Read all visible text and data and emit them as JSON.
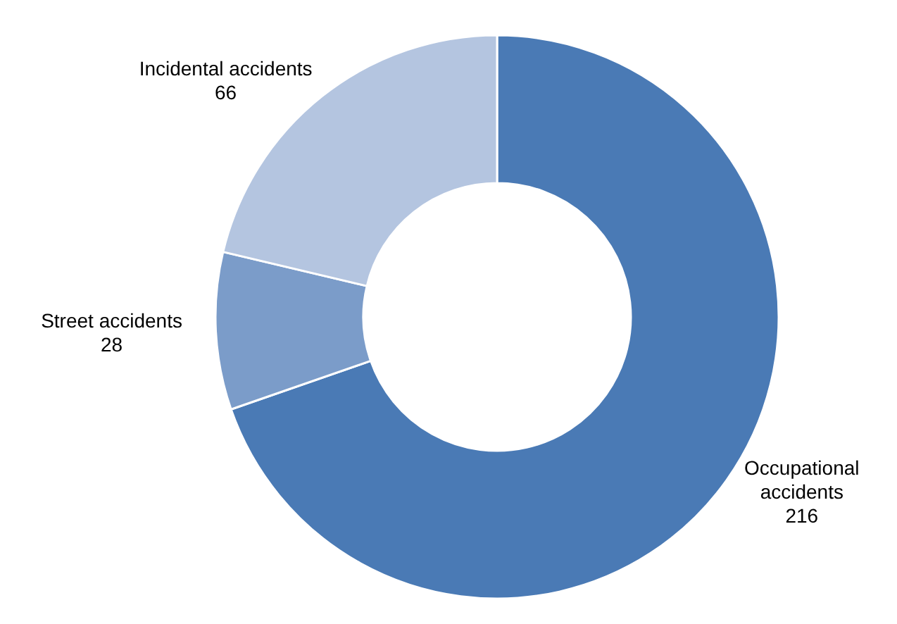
{
  "chart_data": {
    "type": "donut",
    "categories": [
      "Occupational accidents",
      "Street accidents",
      "Incidental accidents"
    ],
    "values": [
      216,
      28,
      66
    ],
    "colors": [
      "#4a7ab5",
      "#7b9cc9",
      "#b4c5e0"
    ],
    "data_labels": true,
    "legend": false
  }
}
